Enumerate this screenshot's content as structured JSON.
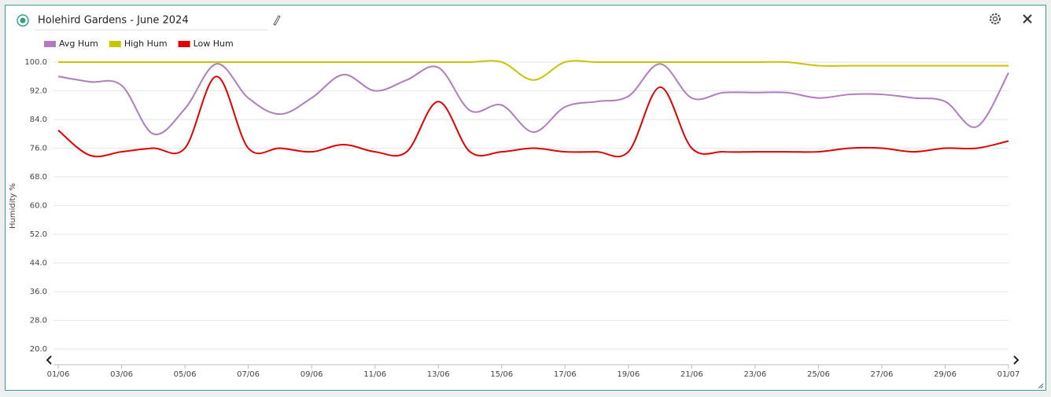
{
  "chart_data": {
    "type": "line",
    "title": "Holehird Gardens - June 2024",
    "y_label": "Humidity %",
    "categories": [
      "01/06",
      null,
      "03/06",
      null,
      "05/06",
      null,
      "07/06",
      null,
      "09/06",
      null,
      "11/06",
      null,
      "13/06",
      null,
      "15/06",
      null,
      "17/06",
      null,
      "19/06",
      null,
      "21/06",
      null,
      "23/06",
      null,
      "25/06",
      null,
      "27/06",
      null,
      "29/06",
      null,
      "01/07"
    ],
    "series": [
      {
        "name": "Avg Hum",
        "color": "#b07cc0",
        "values": [
          96,
          94.5,
          93.5,
          80,
          87,
          99.5,
          90,
          85.5,
          90,
          96.5,
          92,
          95,
          98.5,
          86.5,
          88,
          80.5,
          87.5,
          89,
          90.5,
          99.5,
          90,
          91.5,
          91.5,
          91.5,
          90,
          91,
          91,
          90,
          89,
          82,
          97
        ]
      },
      {
        "name": "High Hum",
        "color": "#c8c400",
        "values": [
          100,
          100,
          100,
          100,
          100,
          100,
          100,
          100,
          100,
          100,
          100,
          100,
          100,
          100,
          100,
          95,
          100,
          100,
          100,
          100,
          100,
          100,
          100,
          100,
          99,
          99,
          99,
          99,
          99,
          99,
          99
        ]
      },
      {
        "name": "Low Hum",
        "color": "#e00000",
        "values": [
          81,
          74,
          75,
          76,
          76,
          96,
          76,
          76,
          75,
          77,
          75,
          75,
          89,
          75,
          75,
          76,
          75,
          75,
          75,
          93,
          76,
          75,
          75,
          75,
          75,
          76,
          76,
          75,
          76,
          76,
          78
        ]
      }
    ],
    "ylim": [
      20,
      100
    ],
    "yticks": [
      {
        "value": 20,
        "label": "20.0"
      },
      {
        "value": 28,
        "label": "28.0"
      },
      {
        "value": 36,
        "label": "36.0"
      },
      {
        "value": 44,
        "label": "44.0"
      },
      {
        "value": 52,
        "label": "52.0"
      },
      {
        "value": 60,
        "label": "60.0"
      },
      {
        "value": 68,
        "label": "68.0"
      },
      {
        "value": 76,
        "label": "76.0"
      },
      {
        "value": 84,
        "label": "84.0"
      },
      {
        "value": 92,
        "label": "92.0"
      },
      {
        "value": 100,
        "label": "100.0"
      }
    ],
    "grid": true
  }
}
